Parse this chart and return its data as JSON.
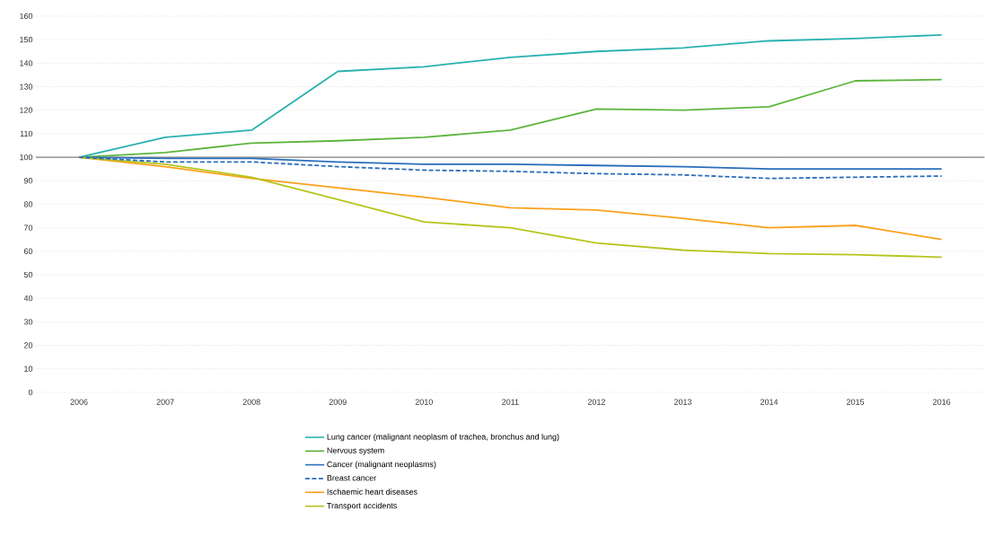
{
  "chart_data": {
    "type": "line",
    "categories": [
      "2006",
      "2007",
      "2008",
      "2009",
      "2010",
      "2011",
      "2012",
      "2013",
      "2014",
      "2015",
      "2016"
    ],
    "series": [
      {
        "name": "Lung cancer (malignant neoplasm of trachea, bronchus and lung)",
        "color": "#2ab0b0",
        "values": [
          100,
          108.5,
          111.5,
          136.5,
          138.5,
          142.5,
          145,
          146.5,
          149.5,
          150.5,
          152
        ]
      },
      {
        "name": "Nervous system",
        "color": "#5db53c",
        "values": [
          100,
          102,
          106,
          107,
          108.5,
          111.5,
          120.5,
          120,
          121.5,
          132.5,
          133
        ]
      },
      {
        "name": "Cancer (malignant neoplasms)",
        "color": "#2a6ebb",
        "values": [
          100,
          99.5,
          99.5,
          98,
          97,
          97,
          96.5,
          96,
          95,
          95,
          95
        ]
      },
      {
        "name": "Breast cancer",
        "color": "#2a6ebb",
        "line_style": "dashed",
        "values": [
          100,
          98,
          98,
          96,
          94.5,
          94,
          93,
          92.5,
          91,
          91.5,
          92
        ]
      },
      {
        "name": "Ischaemic heart diseases",
        "color": "#f9a11b",
        "values": [
          100,
          96,
          91,
          87,
          83,
          78.5,
          77.5,
          74,
          70,
          71,
          65
        ]
      },
      {
        "name": "Transport accidents",
        "color": "#b5c51c",
        "values": [
          100,
          97,
          91.5,
          82,
          72.5,
          70,
          63.5,
          60.5,
          59,
          58.5,
          57.5
        ]
      }
    ],
    "ylim": [
      0,
      160
    ],
    "yticks": [
      0,
      10,
      20,
      30,
      40,
      50,
      60,
      70,
      80,
      90,
      100,
      110,
      120,
      130,
      140,
      150,
      160
    ],
    "ref_lines": [
      {
        "axis": "y",
        "value": 100,
        "color": "#808080"
      }
    ],
    "grid": "y",
    "legend": "bottom",
    "marker": "none",
    "line_style": "solid"
  }
}
